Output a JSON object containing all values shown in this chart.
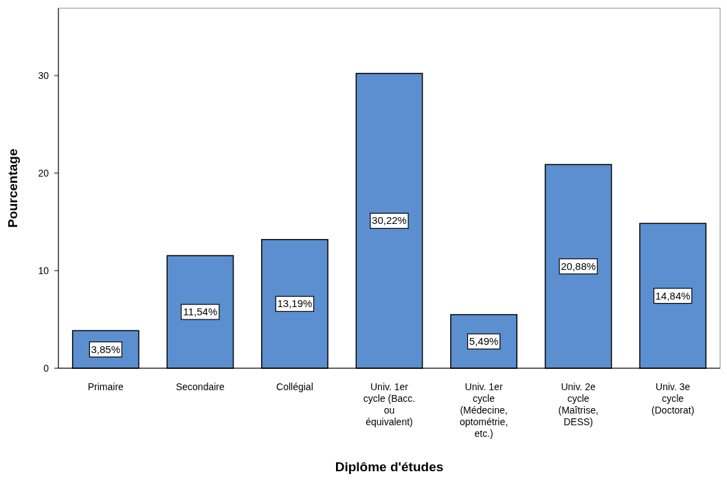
{
  "chart_data": {
    "type": "bar",
    "xlabel": "Diplôme d'études",
    "ylabel": "Pourcentage",
    "categories": [
      "Primaire",
      "Secondaire",
      "Collégial",
      "Univ. 1er cycle (Bacc. ou équivalent)",
      "Univ. 1er cycle (Médecine, optométrie, etc.)",
      "Univ. 2e cycle (Maîtrise, DESS)",
      "Univ. 3e cycle (Doctorat)"
    ],
    "values": [
      3.85,
      11.54,
      13.19,
      30.22,
      5.49,
      20.88,
      14.84
    ],
    "value_labels": [
      "3,85%",
      "11,54%",
      "13,19%",
      "30,22%",
      "5,49%",
      "20,88%",
      "14,84%"
    ],
    "color": "#5b8fcf",
    "ylim": [
      0,
      36.9
    ],
    "yticks": [
      0,
      10,
      20,
      30
    ],
    "grid": false
  }
}
